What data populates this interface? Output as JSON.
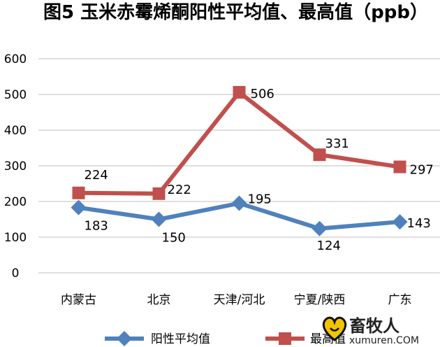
{
  "chart_data": {
    "type": "line",
    "title": "图5  玉米赤霉烯酮阳性平均值、最高值（ppb）",
    "categories": [
      "内蒙古",
      "北京",
      "天津/河北",
      "宁夏/陕西",
      "广东"
    ],
    "ylim": [
      0,
      600
    ],
    "yticks": [
      "0",
      "100",
      "200",
      "300",
      "400",
      "500",
      "600"
    ],
    "grid": true,
    "legend_position": "bottom",
    "series": [
      {
        "name": "阳性平均值",
        "values": [
          183,
          150,
          195,
          124,
          143
        ],
        "color": "#4F81BD",
        "marker": "diamond"
      },
      {
        "name": "最高值",
        "values": [
          224,
          222,
          506,
          331,
          297
        ],
        "color": "#C0504D",
        "marker": "square"
      }
    ]
  },
  "watermark": {
    "text": "畜牧人",
    "url": "xumuren.COM",
    "icon": "heart-logo-icon"
  }
}
